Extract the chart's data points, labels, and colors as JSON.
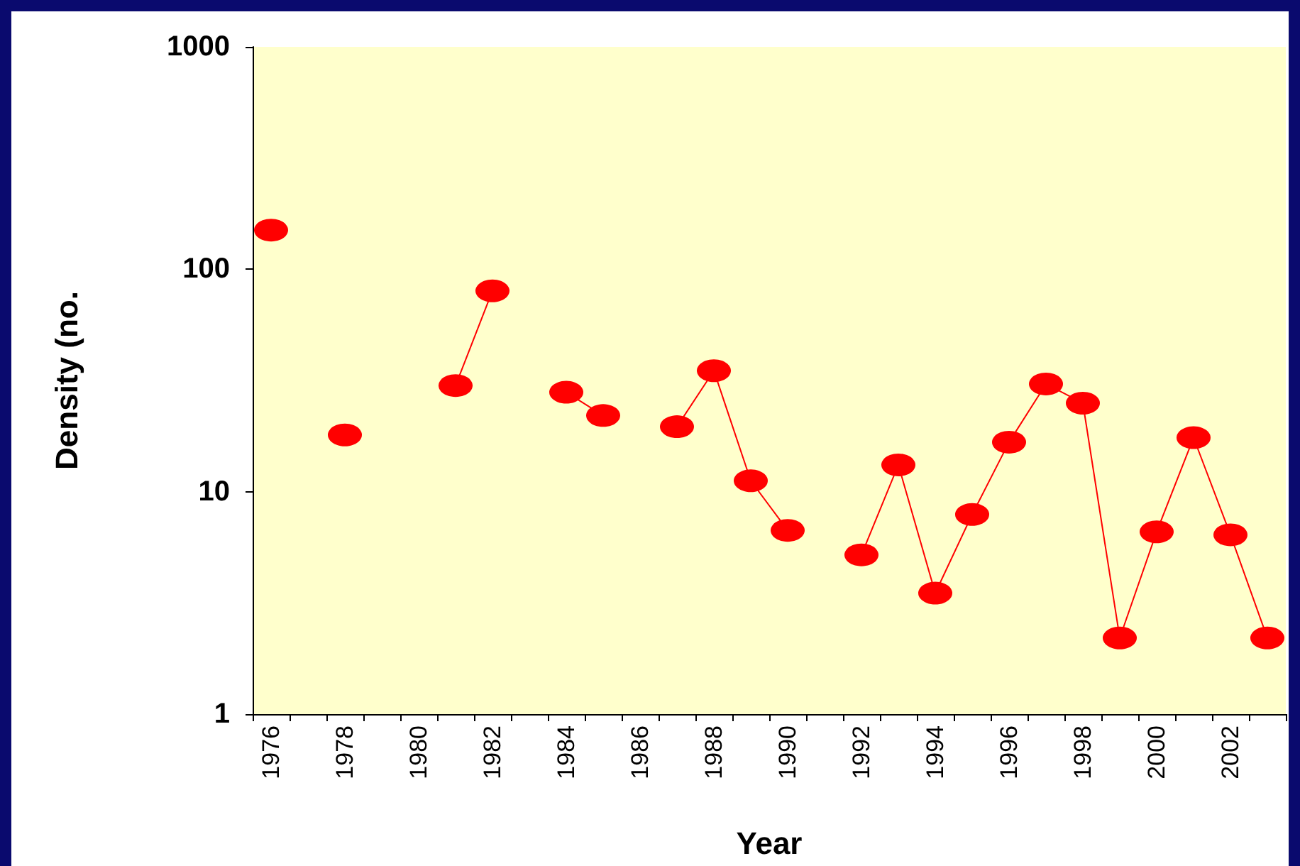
{
  "chart_data": {
    "type": "line",
    "xlabel": "Year",
    "ylabel": "Density (no.",
    "categories": [
      "1976",
      null,
      "1978",
      null,
      "1980",
      null,
      "1982",
      null,
      "1984",
      null,
      "1986",
      null,
      "1988",
      null,
      "1990",
      null,
      "1992",
      null,
      "1994",
      null,
      "1996",
      null,
      "1998",
      null,
      "2000",
      null,
      "2002",
      null
    ],
    "series": [
      {
        "color": "#ff0000",
        "values": [
          150,
          null,
          18,
          null,
          null,
          30,
          80,
          null,
          28,
          22,
          null,
          19.6,
          35,
          11.2,
          6.7,
          null,
          5.2,
          13.2,
          3.5,
          7.9,
          16.7,
          30.5,
          25,
          2.2,
          6.6,
          17.5,
          6.4,
          2.2
        ]
      }
    ],
    "log": true,
    "ylim": [
      1,
      1000
    ],
    "yticks": [
      1,
      10,
      100,
      1000
    ],
    "grid": false,
    "marker": "circle",
    "line_style": "solid"
  }
}
